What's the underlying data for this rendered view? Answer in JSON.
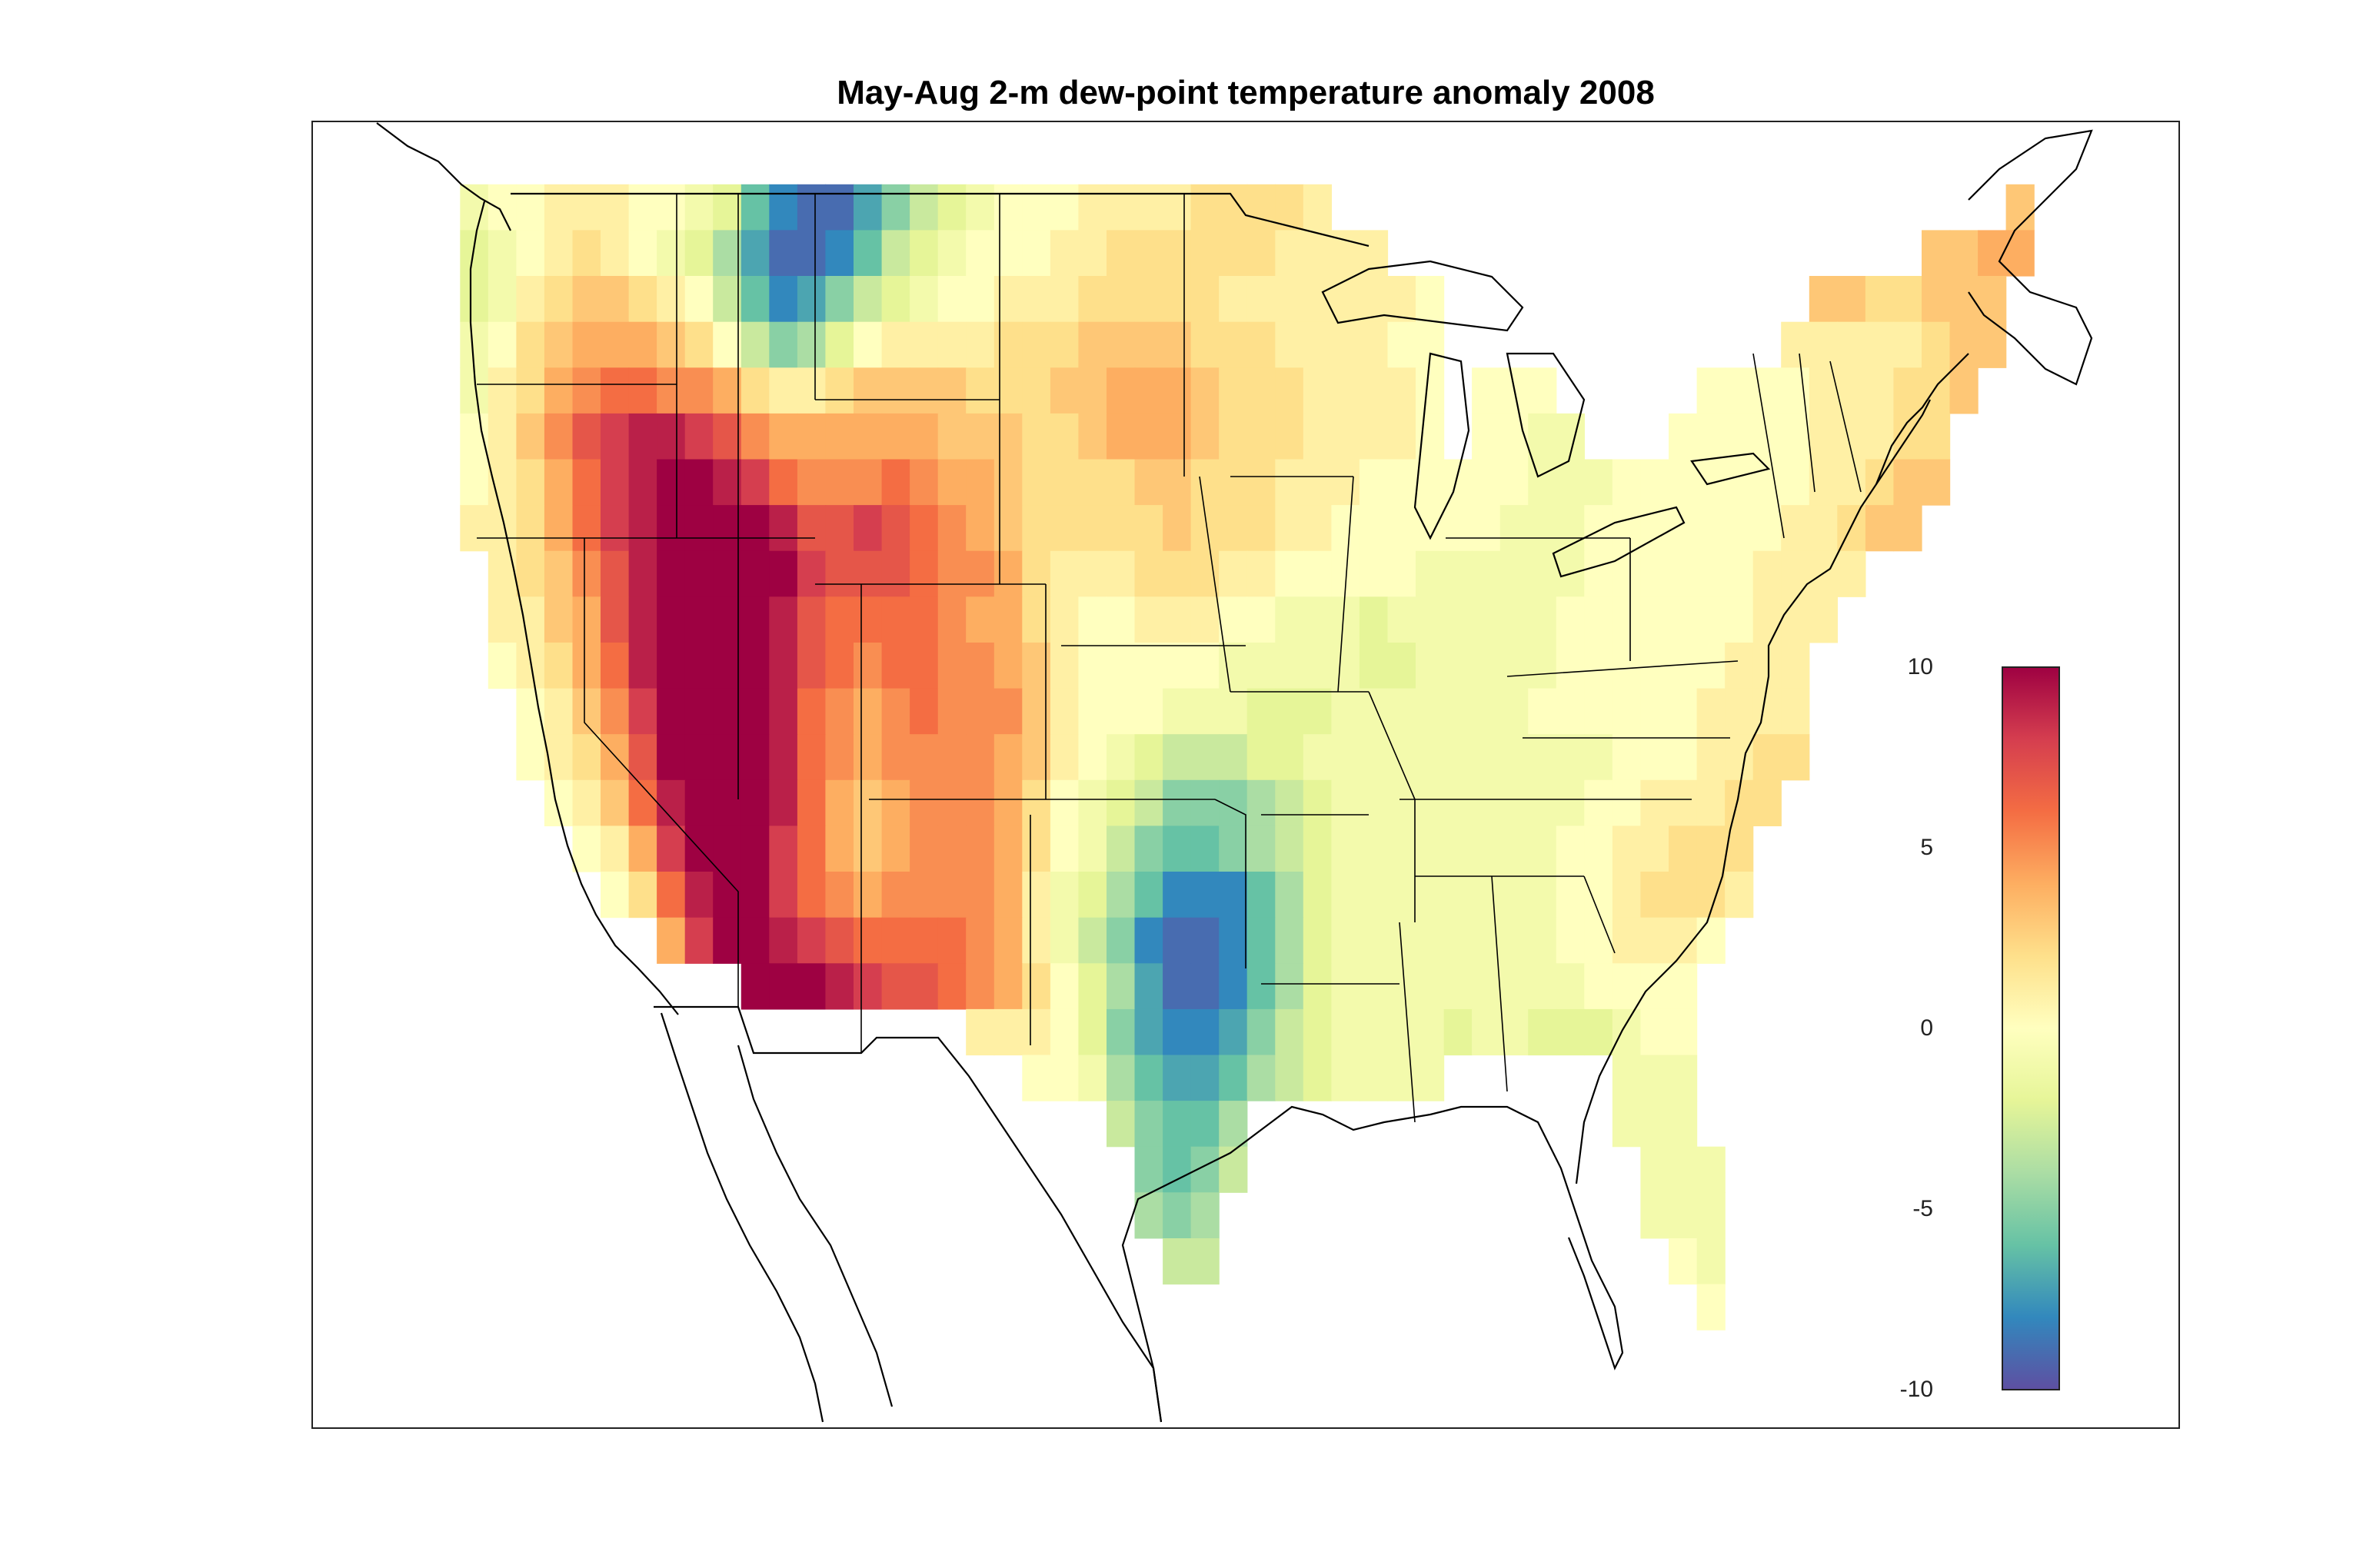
{
  "title": "May-Aug 2-m dew-point temperature anomaly 2008",
  "colorbar": {
    "min": -10,
    "max": 10,
    "ticks": [
      "10",
      "5",
      "0",
      "-5",
      "-10"
    ],
    "tick_values": [
      10,
      5,
      0,
      -5,
      -10
    ],
    "stops": [
      "#5e4fa2",
      "#3288bd",
      "#66c2a5",
      "#abdda4",
      "#e6f598",
      "#ffffbf",
      "#fee08b",
      "#fdae61",
      "#f46d43",
      "#d53e4f",
      "#9e0142"
    ]
  },
  "chart_data": {
    "type": "heatmap",
    "title": "May-Aug 2-m dew-point temperature anomaly 2008",
    "variable": "2-m dew-point temperature anomaly",
    "period": "May-Aug 2008",
    "value_range": [
      -10,
      10
    ],
    "lon_range": [
      -125,
      -67
    ],
    "lat_range": [
      24,
      50
    ],
    "grid_resolution_deg": 1,
    "notes": "Approximate 1-degree grid read from the image; null = no data (ocean/outside US).",
    "lat_rows": [
      49,
      48,
      47,
      46,
      45,
      44,
      43,
      42,
      41,
      40,
      39,
      38,
      37,
      36,
      35,
      34,
      33,
      32,
      31,
      30,
      29,
      28,
      27,
      26,
      25
    ],
    "lon_cols": [
      -124,
      -123,
      -122,
      -121,
      -120,
      -119,
      -118,
      -117,
      -116,
      -115,
      -114,
      -113,
      -112,
      -111,
      -110,
      -109,
      -108,
      -107,
      -106,
      -105,
      -104,
      -103,
      -102,
      -101,
      -100,
      -99,
      -98,
      -97,
      -96,
      -95,
      -94,
      -93,
      -92,
      -91,
      -90,
      -89,
      -88,
      -87,
      -86,
      -85,
      -84,
      -83,
      -82,
      -81,
      -80,
      -79,
      -78,
      -77,
      -76,
      -75,
      -74,
      -73,
      -72,
      -71,
      -70,
      -69,
      -68
    ],
    "values": [
      [
        -1,
        0,
        0,
        1,
        1,
        1,
        0,
        0,
        -1,
        -2,
        -6,
        -8,
        -9,
        -9,
        -7,
        -5,
        -3,
        -2,
        -1,
        0,
        0,
        0,
        1,
        1,
        1,
        1,
        2,
        2,
        2,
        2,
        1,
        null,
        null,
        null,
        null,
        null,
        null,
        null,
        null,
        null,
        null,
        null,
        null,
        null,
        null,
        null,
        null,
        null,
        null,
        null,
        null,
        null,
        null,
        null,
        null,
        3,
        null
      ],
      [
        -2,
        -1,
        0,
        1,
        2,
        1,
        0,
        -1,
        -2,
        -4,
        -7,
        -9,
        -9,
        -8,
        -6,
        -3,
        -2,
        -1,
        0,
        0,
        0,
        1,
        1,
        2,
        2,
        2,
        2,
        2,
        2,
        1,
        1,
        1,
        1,
        null,
        null,
        null,
        null,
        null,
        null,
        null,
        null,
        null,
        null,
        null,
        null,
        null,
        null,
        null,
        null,
        null,
        null,
        null,
        3,
        3,
        4,
        4,
        null
      ],
      [
        -2,
        -1,
        1,
        2,
        3,
        3,
        2,
        1,
        0,
        -3,
        -6,
        -8,
        -7,
        -5,
        -3,
        -2,
        -1,
        0,
        0,
        1,
        1,
        1,
        2,
        2,
        2,
        2,
        2,
        1,
        1,
        1,
        1,
        1,
        1,
        1,
        0,
        null,
        null,
        null,
        null,
        null,
        null,
        null,
        null,
        null,
        null,
        null,
        null,
        null,
        3,
        3,
        2,
        2,
        3,
        3,
        3,
        null,
        null
      ],
      [
        -1,
        0,
        2,
        3,
        4,
        4,
        4,
        3,
        2,
        0,
        -3,
        -5,
        -4,
        -2,
        0,
        1,
        1,
        1,
        1,
        2,
        2,
        2,
        3,
        3,
        3,
        3,
        2,
        2,
        2,
        1,
        1,
        1,
        1,
        0,
        0,
        null,
        null,
        null,
        null,
        null,
        null,
        null,
        null,
        null,
        null,
        null,
        null,
        1,
        1,
        1,
        1,
        1,
        2,
        3,
        3,
        null,
        null
      ],
      [
        -1,
        1,
        2,
        4,
        5,
        6,
        6,
        5,
        5,
        4,
        2,
        1,
        1,
        2,
        3,
        3,
        3,
        3,
        2,
        2,
        2,
        3,
        3,
        4,
        4,
        4,
        3,
        2,
        2,
        2,
        1,
        1,
        1,
        1,
        0,
        null,
        0,
        0,
        0,
        null,
        null,
        null,
        null,
        null,
        0,
        0,
        0,
        0,
        1,
        1,
        1,
        2,
        2,
        3,
        null,
        null,
        null
      ],
      [
        0,
        1,
        3,
        5,
        7,
        8,
        9,
        9,
        8,
        7,
        5,
        4,
        4,
        4,
        4,
        4,
        4,
        3,
        3,
        3,
        2,
        2,
        3,
        4,
        4,
        4,
        3,
        2,
        2,
        2,
        1,
        1,
        1,
        1,
        0,
        null,
        0,
        0,
        -1,
        -1,
        null,
        null,
        null,
        0,
        0,
        0,
        0,
        0,
        1,
        1,
        1,
        2,
        2,
        null,
        null,
        null,
        null
      ],
      [
        0,
        1,
        2,
        4,
        6,
        8,
        9,
        10,
        10,
        9,
        8,
        6,
        5,
        5,
        5,
        6,
        5,
        4,
        4,
        3,
        2,
        2,
        2,
        2,
        3,
        3,
        2,
        2,
        2,
        1,
        1,
        1,
        0,
        0,
        0,
        0,
        0,
        0,
        -1,
        -1,
        -1,
        0,
        0,
        0,
        0,
        0,
        0,
        0,
        1,
        1,
        2,
        3,
        3,
        null,
        null,
        null,
        null
      ],
      [
        1,
        1,
        2,
        4,
        6,
        8,
        9,
        10,
        10,
        10,
        10,
        9,
        7,
        7,
        8,
        7,
        6,
        5,
        4,
        3,
        2,
        2,
        2,
        2,
        2,
        3,
        2,
        2,
        2,
        1,
        1,
        0,
        0,
        0,
        0,
        0,
        0,
        -1,
        -1,
        -1,
        0,
        0,
        0,
        0,
        0,
        0,
        0,
        1,
        1,
        2,
        3,
        3,
        null,
        null,
        null,
        null,
        null
      ],
      [
        null,
        1,
        2,
        3,
        5,
        7,
        9,
        10,
        10,
        10,
        10,
        10,
        8,
        7,
        7,
        7,
        6,
        5,
        5,
        4,
        2,
        1,
        1,
        1,
        2,
        2,
        2,
        1,
        1,
        0,
        0,
        0,
        0,
        0,
        -1,
        -1,
        -1,
        -1,
        -1,
        -1,
        0,
        0,
        0,
        0,
        0,
        0,
        1,
        1,
        1,
        1,
        null,
        null,
        null,
        null,
        null,
        null,
        null
      ],
      [
        null,
        1,
        1,
        3,
        4,
        7,
        9,
        10,
        10,
        10,
        10,
        9,
        7,
        6,
        6,
        6,
        6,
        5,
        4,
        4,
        2,
        1,
        0,
        0,
        1,
        1,
        1,
        0,
        0,
        -1,
        -1,
        -1,
        -2,
        -1,
        -1,
        -1,
        -1,
        -1,
        -1,
        0,
        0,
        0,
        0,
        0,
        0,
        0,
        1,
        1,
        1,
        null,
        null,
        null,
        null,
        null,
        null,
        null,
        null
      ],
      [
        null,
        0,
        1,
        2,
        4,
        6,
        9,
        10,
        10,
        10,
        10,
        9,
        7,
        6,
        5,
        6,
        6,
        5,
        5,
        4,
        3,
        1,
        0,
        0,
        0,
        0,
        0,
        -1,
        -1,
        -1,
        -1,
        -1,
        -2,
        -2,
        -1,
        -1,
        -1,
        -1,
        -1,
        0,
        0,
        0,
        0,
        0,
        0,
        1,
        1,
        1,
        null,
        null,
        null,
        null,
        null,
        null,
        null,
        null,
        null
      ],
      [
        null,
        null,
        0,
        1,
        3,
        5,
        8,
        10,
        10,
        10,
        10,
        9,
        6,
        5,
        4,
        5,
        6,
        5,
        5,
        5,
        3,
        1,
        0,
        0,
        0,
        -1,
        -1,
        -1,
        -2,
        -2,
        -2,
        -1,
        -1,
        -1,
        -1,
        -1,
        -1,
        -1,
        0,
        0,
        0,
        0,
        0,
        0,
        1,
        1,
        1,
        1,
        null,
        null,
        null,
        null,
        null,
        null,
        null,
        null,
        null
      ],
      [
        null,
        null,
        0,
        1,
        2,
        4,
        7,
        10,
        10,
        10,
        10,
        9,
        6,
        5,
        4,
        5,
        5,
        5,
        5,
        4,
        3,
        1,
        0,
        -1,
        -2,
        -3,
        -3,
        -3,
        -2,
        -2,
        -1,
        -1,
        -1,
        -1,
        -1,
        -1,
        -1,
        -1,
        -1,
        -1,
        -1,
        0,
        0,
        0,
        1,
        1,
        2,
        2,
        null,
        null,
        null,
        null,
        null,
        null,
        null,
        null,
        null
      ],
      [
        null,
        null,
        null,
        0,
        1,
        3,
        6,
        9,
        10,
        10,
        10,
        9,
        6,
        4,
        3,
        4,
        5,
        5,
        5,
        4,
        2,
        0,
        -1,
        -2,
        -3,
        -5,
        -5,
        -5,
        -4,
        -3,
        -2,
        -1,
        -1,
        -1,
        -1,
        -1,
        -1,
        -1,
        -1,
        -1,
        0,
        0,
        1,
        1,
        1,
        2,
        2,
        null,
        null,
        null,
        null,
        null,
        null,
        null,
        null,
        null,
        null
      ],
      [
        null,
        null,
        null,
        null,
        0,
        1,
        4,
        8,
        10,
        10,
        10,
        8,
        6,
        4,
        3,
        4,
        5,
        5,
        5,
        4,
        2,
        0,
        -1,
        -3,
        -5,
        -6,
        -6,
        -5,
        -4,
        -3,
        -2,
        -1,
        -1,
        -1,
        -1,
        -1,
        -1,
        -1,
        -1,
        0,
        0,
        1,
        1,
        2,
        2,
        2,
        null,
        null,
        null,
        null,
        null,
        null,
        null,
        null,
        null,
        null,
        null
      ],
      [
        null,
        null,
        null,
        null,
        null,
        0,
        2,
        6,
        9,
        10,
        10,
        8,
        6,
        5,
        4,
        5,
        5,
        5,
        5,
        4,
        1,
        -1,
        -2,
        -4,
        -6,
        -8,
        -8,
        -8,
        -6,
        -4,
        -2,
        -1,
        -1,
        -1,
        -1,
        -1,
        -1,
        -1,
        -1,
        0,
        0,
        1,
        2,
        2,
        2,
        1,
        null,
        null,
        null,
        null,
        null,
        null,
        null,
        null,
        null,
        null,
        null
      ],
      [
        null,
        null,
        null,
        null,
        null,
        null,
        null,
        4,
        8,
        10,
        10,
        9,
        8,
        7,
        6,
        6,
        6,
        6,
        5,
        4,
        1,
        -1,
        -3,
        -5,
        -8,
        -9,
        -9,
        -8,
        -6,
        -4,
        -2,
        -1,
        -1,
        -1,
        -1,
        -1,
        -1,
        -1,
        -1,
        0,
        0,
        1,
        1,
        1,
        0,
        null,
        null,
        null,
        null,
        null,
        null,
        null,
        null,
        null,
        null,
        null,
        null
      ],
      [
        null,
        null,
        null,
        null,
        null,
        null,
        null,
        null,
        null,
        null,
        10,
        10,
        10,
        9,
        8,
        7,
        7,
        6,
        5,
        4,
        2,
        0,
        -2,
        -4,
        -7,
        -9,
        -9,
        -8,
        -6,
        -4,
        -2,
        -1,
        -1,
        -1,
        -1,
        -1,
        -1,
        -1,
        -1,
        -1,
        0,
        0,
        0,
        0,
        null,
        null,
        null,
        null,
        null,
        null,
        null,
        null,
        null,
        null,
        null,
        null,
        null
      ],
      [
        null,
        null,
        null,
        null,
        null,
        null,
        null,
        null,
        null,
        null,
        null,
        null,
        null,
        null,
        null,
        null,
        null,
        null,
        1,
        1,
        1,
        0,
        -2,
        -5,
        -7,
        -8,
        -8,
        -7,
        -5,
        -3,
        -2,
        -1,
        -1,
        -1,
        -1,
        -2,
        -1,
        -1,
        -2,
        -2,
        -2,
        -1,
        0,
        0,
        null,
        null,
        null,
        null,
        null,
        null,
        null,
        null,
        null,
        null,
        null,
        null,
        null
      ],
      [
        null,
        null,
        null,
        null,
        null,
        null,
        null,
        null,
        null,
        null,
        null,
        null,
        null,
        null,
        null,
        null,
        null,
        null,
        null,
        null,
        0,
        0,
        -1,
        -4,
        -6,
        -7,
        -7,
        -6,
        -4,
        -3,
        -2,
        -1,
        -1,
        -1,
        -1,
        null,
        null,
        null,
        null,
        null,
        null,
        -1,
        -1,
        -1,
        null,
        null,
        null,
        null,
        null,
        null,
        null,
        null,
        null,
        null,
        null,
        null,
        null
      ],
      [
        null,
        null,
        null,
        null,
        null,
        null,
        null,
        null,
        null,
        null,
        null,
        null,
        null,
        null,
        null,
        null,
        null,
        null,
        null,
        null,
        null,
        null,
        null,
        -3,
        -5,
        -6,
        -6,
        -4,
        null,
        null,
        null,
        null,
        null,
        null,
        null,
        null,
        null,
        null,
        null,
        null,
        null,
        -1,
        -1,
        -1,
        null,
        null,
        null,
        null,
        null,
        null,
        null,
        null,
        null,
        null,
        null,
        null,
        null
      ],
      [
        null,
        null,
        null,
        null,
        null,
        null,
        null,
        null,
        null,
        null,
        null,
        null,
        null,
        null,
        null,
        null,
        null,
        null,
        null,
        null,
        null,
        null,
        null,
        null,
        -5,
        -6,
        -5,
        -3,
        null,
        null,
        null,
        null,
        null,
        null,
        null,
        null,
        null,
        null,
        null,
        null,
        null,
        null,
        -1,
        -1,
        -1,
        null,
        null,
        null,
        null,
        null,
        null,
        null,
        null,
        null,
        null,
        null,
        null
      ],
      [
        null,
        null,
        null,
        null,
        null,
        null,
        null,
        null,
        null,
        null,
        null,
        null,
        null,
        null,
        null,
        null,
        null,
        null,
        null,
        null,
        null,
        null,
        null,
        null,
        -4,
        -5,
        -4,
        null,
        null,
        null,
        null,
        null,
        null,
        null,
        null,
        null,
        null,
        null,
        null,
        null,
        null,
        null,
        -1,
        -1,
        -1,
        null,
        null,
        null,
        null,
        null,
        null,
        null,
        null,
        null,
        null,
        null,
        null
      ],
      [
        null,
        null,
        null,
        null,
        null,
        null,
        null,
        null,
        null,
        null,
        null,
        null,
        null,
        null,
        null,
        null,
        null,
        null,
        null,
        null,
        null,
        null,
        null,
        null,
        null,
        -3,
        -3,
        null,
        null,
        null,
        null,
        null,
        null,
        null,
        null,
        null,
        null,
        null,
        null,
        null,
        null,
        null,
        null,
        0,
        -1,
        null,
        null,
        null,
        null,
        null,
        null,
        null,
        null,
        null,
        null,
        null,
        null
      ],
      [
        null,
        null,
        null,
        null,
        null,
        null,
        null,
        null,
        null,
        null,
        null,
        null,
        null,
        null,
        null,
        null,
        null,
        null,
        null,
        null,
        null,
        null,
        null,
        null,
        null,
        null,
        null,
        null,
        null,
        null,
        null,
        null,
        null,
        null,
        null,
        null,
        null,
        null,
        null,
        null,
        null,
        null,
        null,
        null,
        0,
        null,
        null,
        null,
        null,
        null,
        null,
        null,
        null,
        null,
        null,
        null,
        null
      ]
    ]
  }
}
